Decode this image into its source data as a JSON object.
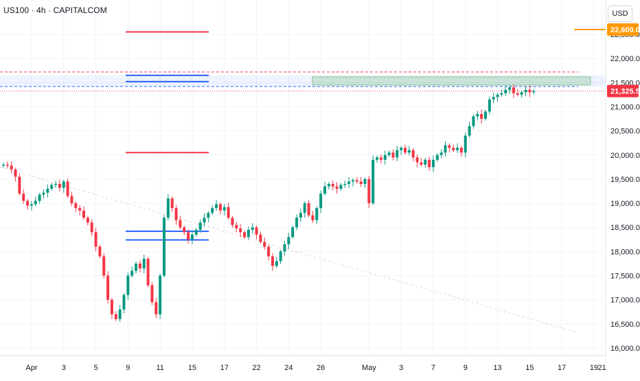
{
  "header": {
    "title": "US100 · 4h · CAPITALCOM",
    "currency": "USD"
  },
  "chart_data": {
    "type": "candlestick",
    "symbol": "US100",
    "timeframe": "4h",
    "source": "CAPITALCOM",
    "currency": "USD",
    "ylim": [
      15950,
      23050
    ],
    "y_ticks": [
      16000,
      16500,
      17000,
      17500,
      18000,
      18500,
      19000,
      19500,
      20000,
      20500,
      21000,
      21500,
      22000,
      22500
    ],
    "y_tick_labels": [
      "16,000.0",
      "16,500.0",
      "17,000.0",
      "17,500.0",
      "18,000.0",
      "18,500.0",
      "19,000.0",
      "19,500.0",
      "20,000.0",
      "20,500.0",
      "21,000.0",
      "21,500.0",
      "22,000.0",
      "22,500.0"
    ],
    "x_ticks": [
      {
        "label": "Apr",
        "bar": 7
      },
      {
        "label": "3",
        "bar": 15
      },
      {
        "label": "5",
        "bar": 23
      },
      {
        "label": "9",
        "bar": 31
      },
      {
        "label": "11",
        "bar": 39
      },
      {
        "label": "15",
        "bar": 47
      },
      {
        "label": "17",
        "bar": 55
      },
      {
        "label": "22",
        "bar": 63
      },
      {
        "label": "24",
        "bar": 71
      },
      {
        "label": "26",
        "bar": 79
      },
      {
        "label": "May",
        "bar": 91
      },
      {
        "label": "3",
        "bar": 99
      },
      {
        "label": "7",
        "bar": 107
      },
      {
        "label": "9",
        "bar": 115
      },
      {
        "label": "13",
        "bar": 123
      },
      {
        "label": "15",
        "bar": 131
      },
      {
        "label": "17",
        "bar": 139
      },
      {
        "label": "19",
        "bar": 147
      },
      {
        "label": "21",
        "bar": 149
      }
    ],
    "closes": [
      19800,
      19780,
      19700,
      19550,
      19200,
      19050,
      18950,
      18980,
      19050,
      19180,
      19220,
      19300,
      19380,
      19400,
      19320,
      19450,
      19150,
      19000,
      18900,
      18850,
      18700,
      18600,
      18400,
      18100,
      17900,
      17500,
      17000,
      16700,
      16600,
      16800,
      17100,
      17500,
      17600,
      17750,
      17650,
      17850,
      17300,
      16950,
      16700,
      17500,
      18700,
      19100,
      18900,
      18650,
      18500,
      18400,
      18250,
      18350,
      18450,
      18600,
      18700,
      18800,
      18900,
      18980,
      18850,
      18920,
      18700,
      18550,
      18480,
      18400,
      18300,
      18450,
      18500,
      18350,
      18200,
      18100,
      17900,
      17700,
      17800,
      18000,
      18150,
      18300,
      18500,
      18700,
      18800,
      19000,
      18750,
      18650,
      18900,
      19200,
      19350,
      19400,
      19350,
      19300,
      19380,
      19400,
      19450,
      19480,
      19450,
      19400,
      19500,
      19000,
      19900,
      19950,
      19900,
      20000,
      20050,
      19950,
      20100,
      20150,
      20050,
      20100,
      19950,
      19850,
      19800,
      19900,
      19750,
      19900,
      20000,
      20050,
      20200,
      20150,
      20100,
      20150,
      20050,
      20400,
      20600,
      20800,
      20850,
      20750,
      20900,
      21150,
      21200,
      21250,
      21280,
      21350,
      21400,
      21280,
      21250,
      21300,
      21350,
      21300,
      21325.5
    ],
    "price_label": {
      "text": "21,325.5",
      "value": 21325.5,
      "color": "#f23645"
    },
    "level_label": {
      "text": "22,600.0",
      "value": 22600,
      "color": "#ff9800"
    },
    "colors": {
      "up": "#089981",
      "down": "#f23645",
      "wick": "#5d606b",
      "grid": "#f0f3fa",
      "axis_text": "#131722",
      "blue": "#2962ff",
      "red": "#f23645",
      "zone_blue": "#2962ff",
      "zone_green": "#4caf50",
      "orange": "#ff9800"
    },
    "grid": true
  }
}
